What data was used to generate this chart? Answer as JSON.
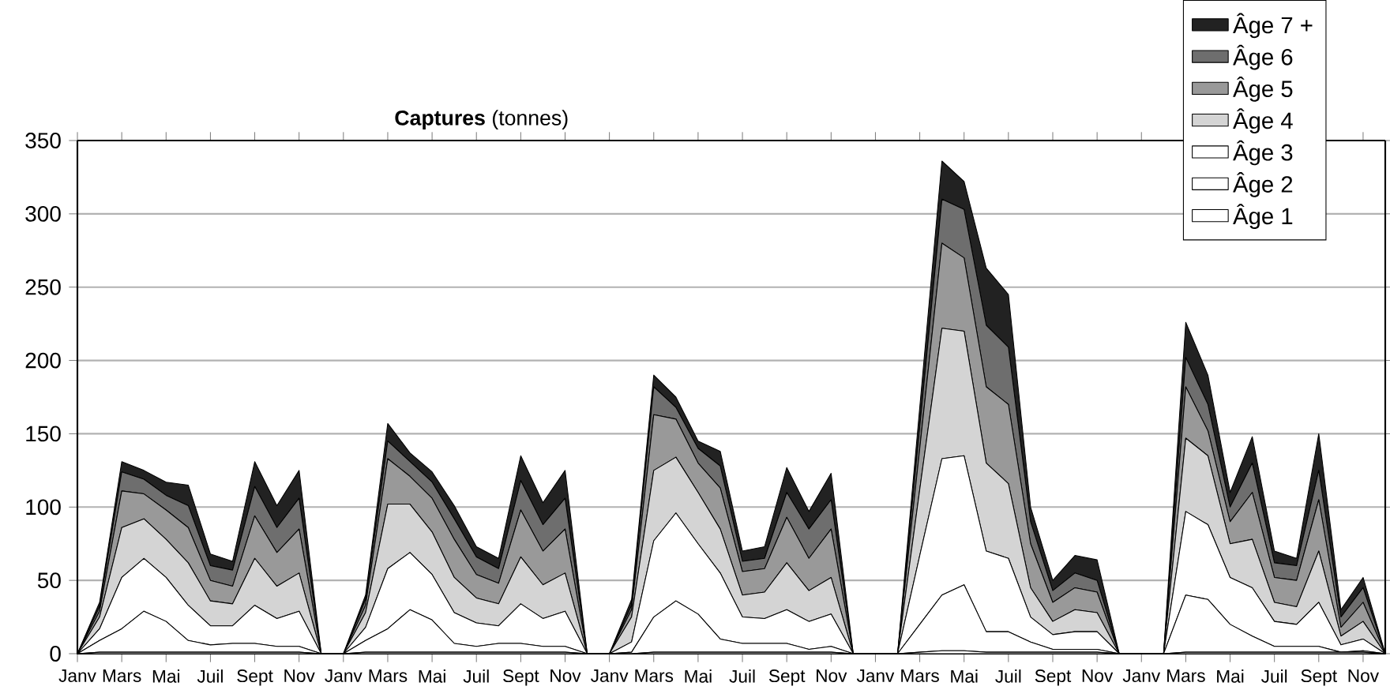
{
  "chart_data": {
    "type": "area",
    "stacked": true,
    "title": "**Captures** (tonnes)",
    "categories": [
      "Janv",
      null,
      "Mars",
      null,
      "Mai",
      null,
      "Juil",
      null,
      "Sept",
      null,
      "Nov",
      null,
      "Janv",
      null,
      "Mars",
      null,
      "Mai",
      null,
      "Juil",
      null,
      "Sept",
      null,
      "Nov",
      null,
      "Janv",
      null,
      "Mars",
      null,
      "Mai",
      null,
      "Juil",
      null,
      "Sept",
      null,
      "Nov",
      null,
      "Janv",
      null,
      "Mars",
      null,
      "Mai",
      null,
      "Juil",
      null,
      "Sept",
      null,
      "Nov",
      null,
      "Janv",
      null,
      "Mars",
      null,
      "Mai",
      null,
      "Juil",
      null,
      "Sept",
      null,
      "Nov",
      null
    ],
    "series": [
      {
        "name": "Âge 1",
        "color": "#ffffff",
        "values": [
          0,
          1,
          1,
          1,
          1,
          1,
          1,
          1,
          1,
          1,
          1,
          0,
          0,
          1,
          1,
          1,
          1,
          1,
          1,
          1,
          1,
          1,
          1,
          0,
          0,
          0,
          1,
          1,
          1,
          1,
          1,
          1,
          1,
          1,
          1,
          0,
          0,
          0,
          1,
          2,
          2,
          1,
          1,
          1,
          1,
          1,
          1,
          0,
          0,
          0,
          1,
          1,
          1,
          1,
          1,
          1,
          1,
          1,
          1,
          0
        ]
      },
      {
        "name": "Âge 2",
        "color": "#ffffff",
        "values": [
          0,
          8,
          16,
          28,
          21,
          8,
          5,
          6,
          6,
          4,
          4,
          0,
          0,
          8,
          16,
          29,
          22,
          6,
          4,
          6,
          6,
          4,
          4,
          0,
          0,
          1,
          24,
          35,
          26,
          9,
          6,
          6,
          6,
          2,
          4,
          0,
          0,
          0,
          19,
          38,
          45,
          14,
          14,
          7,
          2,
          2,
          2,
          0,
          0,
          0,
          39,
          36,
          19,
          11,
          4,
          4,
          4,
          0,
          1,
          0
        ]
      },
      {
        "name": "Âge 3",
        "color": "#ffffff",
        "values": [
          0,
          8,
          35,
          36,
          30,
          24,
          13,
          12,
          26,
          19,
          24,
          0,
          0,
          9,
          41,
          39,
          31,
          21,
          16,
          12,
          27,
          19,
          24,
          0,
          0,
          7,
          52,
          60,
          48,
          45,
          18,
          17,
          23,
          19,
          22,
          0,
          0,
          0,
          47,
          93,
          88,
          55,
          50,
          17,
          10,
          12,
          12,
          0,
          0,
          0,
          57,
          51,
          32,
          33,
          17,
          15,
          30,
          5,
          8,
          0
        ]
      },
      {
        "name": "Âge 4",
        "color": "#d4d4d4",
        "values": [
          0,
          8,
          34,
          27,
          26,
          29,
          17,
          15,
          32,
          22,
          26,
          0,
          0,
          10,
          44,
          33,
          29,
          24,
          17,
          15,
          32,
          23,
          26,
          0,
          0,
          17,
          48,
          38,
          35,
          30,
          15,
          18,
          32,
          21,
          25,
          0,
          0,
          0,
          45,
          89,
          85,
          60,
          51,
          20,
          9,
          15,
          13,
          0,
          0,
          0,
          50,
          47,
          23,
          33,
          13,
          12,
          35,
          6,
          12,
          0
        ]
      },
      {
        "name": "Âge 5",
        "color": "#999999",
        "values": [
          0,
          4,
          25,
          17,
          20,
          24,
          14,
          12,
          29,
          23,
          30,
          0,
          0,
          5,
          31,
          19,
          23,
          26,
          16,
          14,
          32,
          23,
          30,
          0,
          0,
          5,
          38,
          26,
          20,
          28,
          16,
          16,
          31,
          22,
          33,
          0,
          0,
          0,
          28,
          58,
          50,
          52,
          54,
          30,
          13,
          15,
          14,
          0,
          0,
          0,
          35,
          17,
          15,
          32,
          17,
          18,
          35,
          6,
          13,
          0
        ]
      },
      {
        "name": "Âge 6",
        "color": "#6e6e6e",
        "values": [
          0,
          3,
          13,
          10,
          10,
          15,
          10,
          11,
          20,
          17,
          21,
          0,
          0,
          4,
          12,
          10,
          11,
          14,
          12,
          10,
          20,
          18,
          21,
          0,
          0,
          3,
          19,
          8,
          10,
          15,
          7,
          7,
          17,
          20,
          20,
          0,
          0,
          0,
          15,
          30,
          33,
          42,
          39,
          15,
          8,
          10,
          8,
          0,
          0,
          0,
          20,
          18,
          10,
          20,
          10,
          10,
          20,
          7,
          10,
          0
        ]
      },
      {
        "name": "Âge 7 +",
        "color": "#222222",
        "values": [
          0,
          3,
          7,
          6,
          9,
          14,
          8,
          6,
          17,
          15,
          19,
          0,
          0,
          3,
          12,
          6,
          7,
          9,
          7,
          7,
          17,
          15,
          19,
          0,
          0,
          4,
          8,
          7,
          5,
          10,
          7,
          8,
          17,
          12,
          18,
          0,
          0,
          0,
          13,
          26,
          19,
          39,
          36,
          10,
          7,
          12,
          14,
          0,
          0,
          0,
          24,
          20,
          10,
          18,
          8,
          5,
          25,
          5,
          7,
          0
        ]
      }
    ],
    "ylim": [
      0,
      350
    ],
    "yticks": [
      0,
      50,
      100,
      150,
      200,
      250,
      300,
      350
    ],
    "grid": "y",
    "legend": "top right"
  }
}
